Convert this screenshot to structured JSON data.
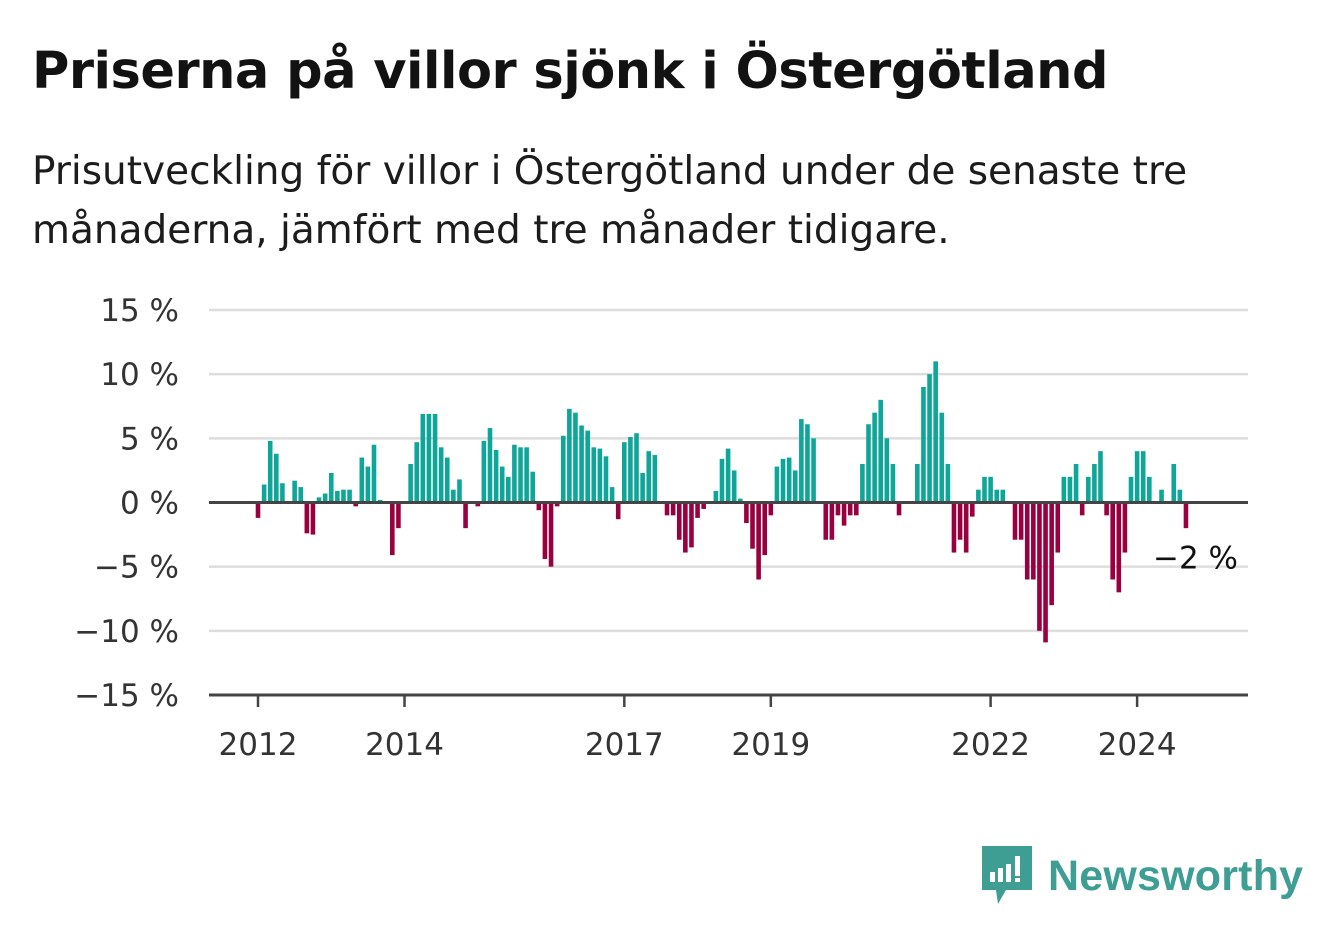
{
  "title": "Priserna på villor sjönk i Östergötland",
  "subtitle": "Prisutveckling för villor i Östergötland under de senaste tre månaderna, jämfört med tre månader tidigare.",
  "brand": "Newsworthy",
  "colors": {
    "positive": "#0fa69a",
    "negative": "#99003f",
    "grid": "#dddddd",
    "axis": "#444444"
  },
  "chart_data": {
    "type": "bar",
    "title": "Priserna på villor sjönk i Östergötland",
    "xlabel": "",
    "ylabel": "",
    "ylim": [
      -15,
      15
    ],
    "y_ticks": [
      15,
      10,
      5,
      0,
      -5,
      -10,
      -15
    ],
    "y_tick_labels": [
      "15 %",
      "10 %",
      "5 %",
      "0 %",
      "−5 %",
      "−10 %",
      "−15 %"
    ],
    "x_ticks": [
      {
        "label": "2012",
        "index": 0
      },
      {
        "label": "2014",
        "index": 24
      },
      {
        "label": "2017",
        "index": 60
      },
      {
        "label": "2019",
        "index": 84
      },
      {
        "label": "2022",
        "index": 120
      },
      {
        "label": "2024",
        "index": 144
      }
    ],
    "x_start": "2012-01",
    "x_end": "2025-06",
    "values": [
      -1.2,
      1.4,
      4.8,
      3.8,
      1.5,
      0.0,
      1.7,
      1.2,
      -2.4,
      -2.5,
      0.4,
      0.7,
      2.3,
      0.9,
      1.0,
      1.0,
      -0.3,
      3.5,
      2.8,
      4.5,
      0.2,
      0.0,
      -4.1,
      -2.0,
      0.0,
      3.0,
      4.7,
      6.9,
      6.9,
      6.9,
      4.3,
      3.5,
      1.0,
      1.8,
      -2.0,
      0.0,
      -0.3,
      4.8,
      5.8,
      4.1,
      2.8,
      2.0,
      4.5,
      4.3,
      4.3,
      2.4,
      -0.6,
      -4.4,
      -5.0,
      -0.3,
      5.2,
      7.3,
      7.0,
      6.0,
      5.6,
      4.3,
      4.2,
      3.6,
      1.2,
      -1.3,
      4.7,
      5.1,
      5.4,
      2.3,
      4.0,
      3.7,
      0.0,
      -1.0,
      -1.0,
      -2.9,
      -3.9,
      -3.5,
      -1.2,
      -0.5,
      0.0,
      0.9,
      3.4,
      4.2,
      2.5,
      0.3,
      -1.6,
      -3.6,
      -6.0,
      -4.1,
      -1.0,
      2.8,
      3.4,
      3.5,
      2.5,
      6.5,
      6.1,
      5.0,
      0.0,
      -2.9,
      -2.9,
      -1.0,
      -1.8,
      -1.0,
      -1.0,
      3.0,
      6.1,
      7.0,
      8.0,
      5.0,
      3.0,
      -1.0,
      0.0,
      0.0,
      3.0,
      9.0,
      10.0,
      11.0,
      7.0,
      3.0,
      -3.9,
      -2.9,
      -3.9,
      -1.1,
      1.0,
      2.0,
      2.0,
      1.0,
      1.0,
      0.0,
      -2.9,
      -2.9,
      -6.0,
      -6.0,
      -10.0,
      -10.9,
      -8.0,
      -3.9,
      2.0,
      2.0,
      3.0,
      -1.0,
      2.0,
      3.0,
      4.0,
      -1.0,
      -6.0,
      -7.0,
      -3.9,
      2.0,
      4.0,
      4.0,
      2.0,
      0.0,
      1.0,
      0.0,
      3.0,
      1.0,
      -2.0
    ],
    "end_label": "−2 %"
  }
}
